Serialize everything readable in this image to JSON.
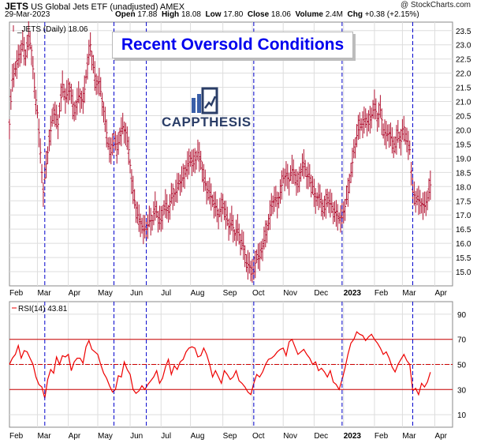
{
  "header": {
    "symbol": "JETS",
    "name": "US Global Jets ETF (unadjusted) AMEX",
    "source": "@ StockCharts.com",
    "date": "29-Mar-2023",
    "open_label": "Open",
    "open": "17.88",
    "high_label": "High",
    "high": "18.08",
    "low_label": "Low",
    "low": "17.80",
    "close_label": "Close",
    "close": "18.06",
    "volume_label": "Volume",
    "volume": "2.4M",
    "chg_label": "Chg",
    "chg": "+0.38 (+2.15%)"
  },
  "annotation": {
    "text": "Recent Oversold Conditions"
  },
  "logo": {
    "text": "CAPPTHESIS"
  },
  "colors": {
    "price": "#b01030",
    "rsi": "#ee0000",
    "marker": "#0000cc",
    "grid": "#dddddd"
  },
  "chart_data": [
    {
      "type": "ohlc",
      "legend": "_JETS (Daily) 18.06",
      "ylim": [
        14.5,
        23.8
      ],
      "yticks": [
        15.0,
        15.5,
        16.0,
        16.5,
        17.0,
        17.5,
        18.0,
        18.5,
        19.0,
        19.5,
        20.0,
        20.5,
        21.0,
        21.5,
        22.0,
        22.5,
        23.0,
        23.5
      ],
      "x_range": [
        0,
        300
      ],
      "month_ticks": [
        {
          "label": "Feb",
          "x": 0,
          "bold": false
        },
        {
          "label": "Mar",
          "x": 19,
          "bold": false
        },
        {
          "label": "Apr",
          "x": 40,
          "bold": false
        },
        {
          "label": "May",
          "x": 60,
          "bold": false
        },
        {
          "label": "Jun",
          "x": 82,
          "bold": false
        },
        {
          "label": "Jul",
          "x": 103,
          "bold": false
        },
        {
          "label": "Aug",
          "x": 123,
          "bold": false
        },
        {
          "label": "Sep",
          "x": 145,
          "bold": false
        },
        {
          "label": "Oct",
          "x": 165,
          "bold": false
        },
        {
          "label": "Nov",
          "x": 186,
          "bold": false
        },
        {
          "label": "Dec",
          "x": 207,
          "bold": false
        },
        {
          "label": "2023",
          "x": 227,
          "bold": true
        },
        {
          "label": "Feb",
          "x": 248,
          "bold": false
        },
        {
          "label": "Mar",
          "x": 267,
          "bold": false
        },
        {
          "label": "Apr",
          "x": 289,
          "bold": false
        }
      ],
      "markers_x": [
        24,
        71,
        93,
        166,
        226,
        274
      ],
      "anchors": [
        [
          0,
          20.2
        ],
        [
          2,
          21.8
        ],
        [
          6,
          22.5
        ],
        [
          9,
          23.0
        ],
        [
          11,
          22.6
        ],
        [
          13,
          23.3
        ],
        [
          15,
          22.8
        ],
        [
          17,
          21.5
        ],
        [
          19,
          20.6
        ],
        [
          21,
          19.2
        ],
        [
          23,
          17.8
        ],
        [
          25,
          18.8
        ],
        [
          27,
          19.6
        ],
        [
          30,
          20.7
        ],
        [
          33,
          20.2
        ],
        [
          36,
          21.6
        ],
        [
          38,
          21.1
        ],
        [
          41,
          21.5
        ],
        [
          44,
          20.6
        ],
        [
          47,
          21.2
        ],
        [
          50,
          21.0
        ],
        [
          53,
          22.3
        ],
        [
          55,
          23.0
        ],
        [
          57,
          22.2
        ],
        [
          59,
          21.6
        ],
        [
          61,
          21.7
        ],
        [
          63,
          21.0
        ],
        [
          65,
          20.3
        ],
        [
          67,
          19.5
        ],
        [
          69,
          19.2
        ],
        [
          71,
          19.7
        ],
        [
          73,
          19.3
        ],
        [
          75,
          19.8
        ],
        [
          77,
          20.1
        ],
        [
          79,
          19.9
        ],
        [
          81,
          19.3
        ],
        [
          83,
          18.2
        ],
        [
          85,
          17.5
        ],
        [
          87,
          17.0
        ],
        [
          89,
          16.7
        ],
        [
          91,
          16.5
        ],
        [
          93,
          16.5
        ],
        [
          95,
          16.8
        ],
        [
          97,
          16.8
        ],
        [
          99,
          17.3
        ],
        [
          101,
          16.9
        ],
        [
          103,
          16.8
        ],
        [
          106,
          17.4
        ],
        [
          108,
          17.1
        ],
        [
          110,
          17.6
        ],
        [
          113,
          17.8
        ],
        [
          115,
          18.1
        ],
        [
          118,
          18.3
        ],
        [
          120,
          18.6
        ],
        [
          123,
          19.0
        ],
        [
          125,
          18.8
        ],
        [
          128,
          19.2
        ],
        [
          130,
          18.9
        ],
        [
          132,
          18.3
        ],
        [
          134,
          17.9
        ],
        [
          136,
          17.8
        ],
        [
          138,
          17.5
        ],
        [
          140,
          17.3
        ],
        [
          142,
          17.0
        ],
        [
          145,
          17.4
        ],
        [
          147,
          17.0
        ],
        [
          149,
          16.6
        ],
        [
          151,
          16.8
        ],
        [
          153,
          16.3
        ],
        [
          155,
          16.5
        ],
        [
          157,
          16.1
        ],
        [
          159,
          15.9
        ],
        [
          161,
          15.3
        ],
        [
          163,
          15.2
        ],
        [
          166,
          15.0
        ],
        [
          168,
          15.6
        ],
        [
          170,
          15.5
        ],
        [
          172,
          15.9
        ],
        [
          174,
          16.3
        ],
        [
          176,
          16.7
        ],
        [
          178,
          17.3
        ],
        [
          180,
          17.6
        ],
        [
          182,
          17.4
        ],
        [
          184,
          17.8
        ],
        [
          186,
          18.3
        ],
        [
          188,
          18.4
        ],
        [
          190,
          18.2
        ],
        [
          192,
          18.6
        ],
        [
          194,
          18.4
        ],
        [
          196,
          18.0
        ],
        [
          198,
          18.6
        ],
        [
          200,
          18.8
        ],
        [
          202,
          18.4
        ],
        [
          204,
          18.3
        ],
        [
          206,
          18.0
        ],
        [
          208,
          17.5
        ],
        [
          210,
          17.7
        ],
        [
          212,
          17.4
        ],
        [
          214,
          17.2
        ],
        [
          216,
          17.6
        ],
        [
          218,
          17.4
        ],
        [
          220,
          17.2
        ],
        [
          222,
          17.0
        ],
        [
          224,
          16.9
        ],
        [
          226,
          16.9
        ],
        [
          228,
          17.3
        ],
        [
          230,
          17.8
        ],
        [
          232,
          18.5
        ],
        [
          234,
          19.2
        ],
        [
          236,
          19.8
        ],
        [
          238,
          20.2
        ],
        [
          240,
          20.2
        ],
        [
          242,
          20.4
        ],
        [
          244,
          20.2
        ],
        [
          246,
          20.5
        ],
        [
          248,
          20.9
        ],
        [
          250,
          20.4
        ],
        [
          252,
          20.7
        ],
        [
          254,
          20.0
        ],
        [
          256,
          19.8
        ],
        [
          258,
          19.9
        ],
        [
          260,
          19.6
        ],
        [
          262,
          19.4
        ],
        [
          264,
          19.9
        ],
        [
          266,
          19.6
        ],
        [
          268,
          20.1
        ],
        [
          270,
          19.6
        ],
        [
          272,
          19.3
        ],
        [
          274,
          17.8
        ],
        [
          276,
          17.6
        ],
        [
          278,
          17.5
        ],
        [
          280,
          17.4
        ],
        [
          282,
          17.3
        ],
        [
          284,
          17.6
        ],
        [
          285,
          17.8
        ],
        [
          286,
          18.06
        ]
      ]
    },
    {
      "type": "line",
      "legend": "RSI(14) 43.81",
      "ylim": [
        0,
        100
      ],
      "yticks": [
        10,
        30,
        50,
        70,
        90
      ],
      "reference_lines": [
        {
          "value": 70,
          "style": "solid"
        },
        {
          "value": 50,
          "style": "dashed"
        },
        {
          "value": 30,
          "style": "solid"
        }
      ],
      "x_range": [
        0,
        300
      ],
      "points": [
        [
          0,
          50
        ],
        [
          2,
          55
        ],
        [
          4,
          58
        ],
        [
          6,
          65
        ],
        [
          8,
          55
        ],
        [
          10,
          61
        ],
        [
          12,
          60
        ],
        [
          14,
          55
        ],
        [
          16,
          50
        ],
        [
          18,
          40
        ],
        [
          20,
          34
        ],
        [
          22,
          32
        ],
        [
          24,
          23
        ],
        [
          26,
          38
        ],
        [
          28,
          46
        ],
        [
          30,
          43
        ],
        [
          32,
          56
        ],
        [
          34,
          50
        ],
        [
          36,
          57
        ],
        [
          38,
          56
        ],
        [
          40,
          58
        ],
        [
          42,
          45
        ],
        [
          44,
          52
        ],
        [
          46,
          55
        ],
        [
          48,
          55
        ],
        [
          50,
          51
        ],
        [
          52,
          64
        ],
        [
          54,
          69
        ],
        [
          56,
          62
        ],
        [
          58,
          60
        ],
        [
          60,
          58
        ],
        [
          62,
          50
        ],
        [
          64,
          43
        ],
        [
          66,
          39
        ],
        [
          68,
          33
        ],
        [
          70,
          28
        ],
        [
          72,
          30
        ],
        [
          74,
          41
        ],
        [
          76,
          40
        ],
        [
          78,
          52
        ],
        [
          80,
          46
        ],
        [
          82,
          42
        ],
        [
          84,
          30
        ],
        [
          86,
          27
        ],
        [
          88,
          29
        ],
        [
          90,
          33
        ],
        [
          92,
          30
        ],
        [
          94,
          34
        ],
        [
          96,
          37
        ],
        [
          98,
          40
        ],
        [
          100,
          45
        ],
        [
          102,
          35
        ],
        [
          104,
          39
        ],
        [
          106,
          48
        ],
        [
          108,
          54
        ],
        [
          110,
          42
        ],
        [
          112,
          49
        ],
        [
          114,
          46
        ],
        [
          116,
          52
        ],
        [
          118,
          54
        ],
        [
          120,
          60
        ],
        [
          122,
          63
        ],
        [
          124,
          64
        ],
        [
          126,
          63
        ],
        [
          128,
          56
        ],
        [
          130,
          57
        ],
        [
          132,
          63
        ],
        [
          134,
          58
        ],
        [
          136,
          50
        ],
        [
          138,
          40
        ],
        [
          140,
          45
        ],
        [
          142,
          40
        ],
        [
          144,
          35
        ],
        [
          146,
          45
        ],
        [
          148,
          42
        ],
        [
          150,
          38
        ],
        [
          152,
          40
        ],
        [
          154,
          45
        ],
        [
          156,
          37
        ],
        [
          158,
          35
        ],
        [
          160,
          32
        ],
        [
          162,
          28
        ],
        [
          164,
          26
        ],
        [
          166,
          35
        ],
        [
          168,
          42
        ],
        [
          170,
          40
        ],
        [
          172,
          44
        ],
        [
          174,
          50
        ],
        [
          176,
          54
        ],
        [
          178,
          55
        ],
        [
          180,
          57
        ],
        [
          182,
          60
        ],
        [
          184,
          62
        ],
        [
          186,
          63
        ],
        [
          188,
          57
        ],
        [
          190,
          68
        ],
        [
          192,
          70
        ],
        [
          194,
          64
        ],
        [
          196,
          58
        ],
        [
          198,
          60
        ],
        [
          200,
          62
        ],
        [
          202,
          58
        ],
        [
          204,
          55
        ],
        [
          206,
          50
        ],
        [
          208,
          52
        ],
        [
          210,
          45
        ],
        [
          212,
          47
        ],
        [
          214,
          44
        ],
        [
          216,
          40
        ],
        [
          218,
          45
        ],
        [
          220,
          36
        ],
        [
          222,
          34
        ],
        [
          224,
          30
        ],
        [
          226,
          38
        ],
        [
          228,
          47
        ],
        [
          230,
          58
        ],
        [
          232,
          67
        ],
        [
          234,
          70
        ],
        [
          236,
          76
        ],
        [
          238,
          74
        ],
        [
          240,
          73
        ],
        [
          242,
          69
        ],
        [
          244,
          72
        ],
        [
          246,
          74
        ],
        [
          248,
          70
        ],
        [
          250,
          67
        ],
        [
          252,
          63
        ],
        [
          254,
          58
        ],
        [
          256,
          60
        ],
        [
          258,
          55
        ],
        [
          260,
          48
        ],
        [
          262,
          44
        ],
        [
          264,
          50
        ],
        [
          266,
          54
        ],
        [
          268,
          58
        ],
        [
          270,
          53
        ],
        [
          272,
          50
        ],
        [
          274,
          29
        ],
        [
          276,
          31
        ],
        [
          278,
          26
        ],
        [
          280,
          35
        ],
        [
          282,
          32
        ],
        [
          284,
          36
        ],
        [
          286,
          43.81
        ]
      ]
    }
  ]
}
